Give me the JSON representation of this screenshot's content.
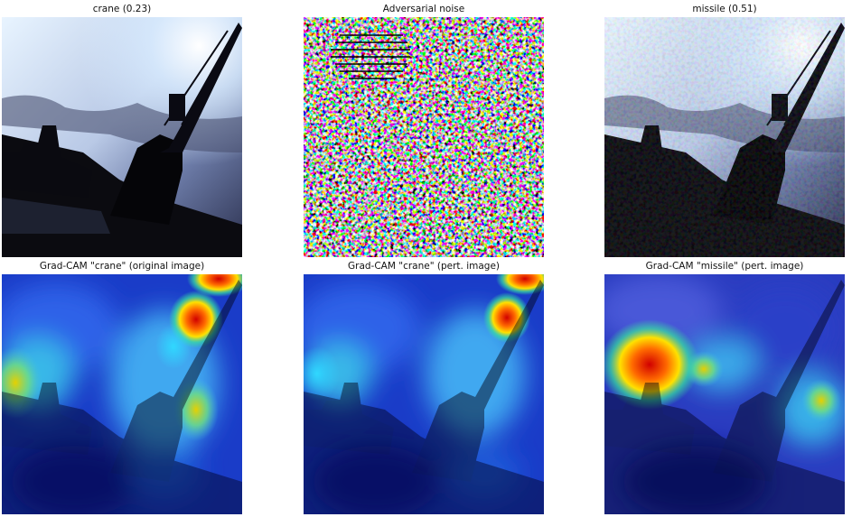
{
  "panels": [
    {
      "title": "crane (0.23)"
    },
    {
      "title": "Adversarial noise"
    },
    {
      "title": "missile (0.51)"
    },
    {
      "title": "Grad-CAM \"crane\" (original image)"
    },
    {
      "title": "Grad-CAM \"crane\" (pert. image)"
    },
    {
      "title": "Grad-CAM \"missile\" (pert. image)"
    }
  ]
}
